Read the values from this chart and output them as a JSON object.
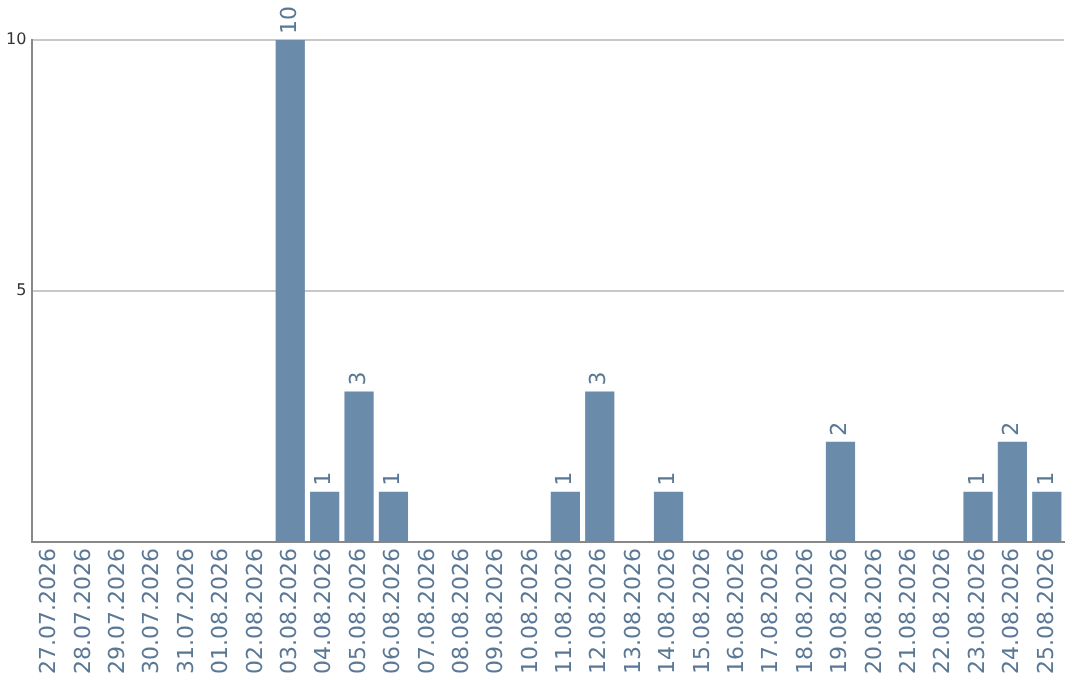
{
  "chart_data": {
    "type": "bar",
    "categories": [
      "27.07.2026",
      "28.07.2026",
      "29.07.2026",
      "30.07.2026",
      "31.07.2026",
      "01.08.2026",
      "02.08.2026",
      "03.08.2026",
      "04.08.2026",
      "05.08.2026",
      "06.08.2026",
      "07.08.2026",
      "08.08.2026",
      "09.08.2026",
      "10.08.2026",
      "11.08.2026",
      "12.08.2026",
      "13.08.2026",
      "14.08.2026",
      "15.08.2026",
      "16.08.2026",
      "17.08.2026",
      "18.08.2026",
      "19.08.2026",
      "20.08.2026",
      "21.08.2026",
      "22.08.2026",
      "23.08.2026",
      "24.08.2026",
      "25.08.2026"
    ],
    "values": [
      0,
      0,
      0,
      0,
      0,
      0,
      0,
      10,
      1,
      3,
      1,
      0,
      0,
      0,
      0,
      1,
      3,
      0,
      1,
      0,
      0,
      0,
      0,
      2,
      0,
      0,
      0,
      1,
      2,
      1
    ],
    "value_labels": [
      null,
      null,
      null,
      null,
      null,
      null,
      null,
      "10",
      "1",
      "3",
      "1",
      null,
      null,
      null,
      null,
      "1",
      "3",
      null,
      "1",
      null,
      null,
      null,
      null,
      "2",
      null,
      null,
      null,
      "1",
      "2",
      "1"
    ],
    "color": "#6b8bab",
    "ylim": [
      0,
      10
    ],
    "yticks": [
      5,
      10
    ],
    "grid": "y",
    "legend": false
  }
}
